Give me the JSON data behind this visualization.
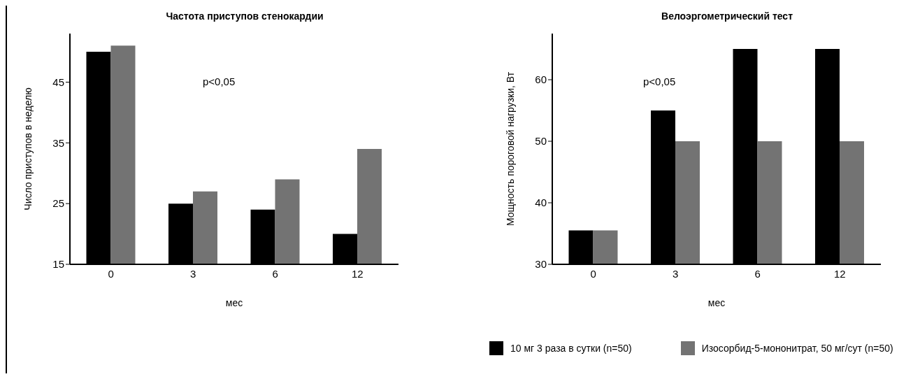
{
  "chart_data": [
    {
      "type": "bar",
      "title": "Частота приступов стенокардии",
      "xlabel": "мес",
      "ylabel": "Число приступов в неделю",
      "categories": [
        "0",
        "3",
        "6",
        "12"
      ],
      "series": [
        {
          "color": "#000000",
          "values": [
            50,
            25,
            24,
            20
          ]
        },
        {
          "color": "#737373",
          "values": [
            51,
            27,
            29,
            34
          ]
        }
      ],
      "ylim": [
        15,
        53
      ],
      "yticks": [
        15,
        25,
        35,
        45
      ],
      "annotations": [
        "p<0,05"
      ],
      "grid": false,
      "legend": false
    },
    {
      "type": "bar",
      "title": "Велоэргометрический тест",
      "xlabel": "мес",
      "ylabel": "Мощность пороговой нагрузки, Вт",
      "categories": [
        "0",
        "3",
        "6",
        "12"
      ],
      "series": [
        {
          "name": "10 мг 3 раза в сутки (n=50)",
          "color": "#000000",
          "values": [
            35.5,
            55,
            65,
            65
          ]
        },
        {
          "name": "Изосорбид-5-мононитрат, 50 мг/сут (n=50)",
          "color": "#737373",
          "values": [
            35.5,
            50,
            50,
            50
          ]
        }
      ],
      "ylim": [
        30,
        67.5
      ],
      "yticks": [
        30,
        40,
        50,
        60
      ],
      "annotations": [
        "p<0,05"
      ],
      "grid": false,
      "legend": "bottom"
    }
  ]
}
